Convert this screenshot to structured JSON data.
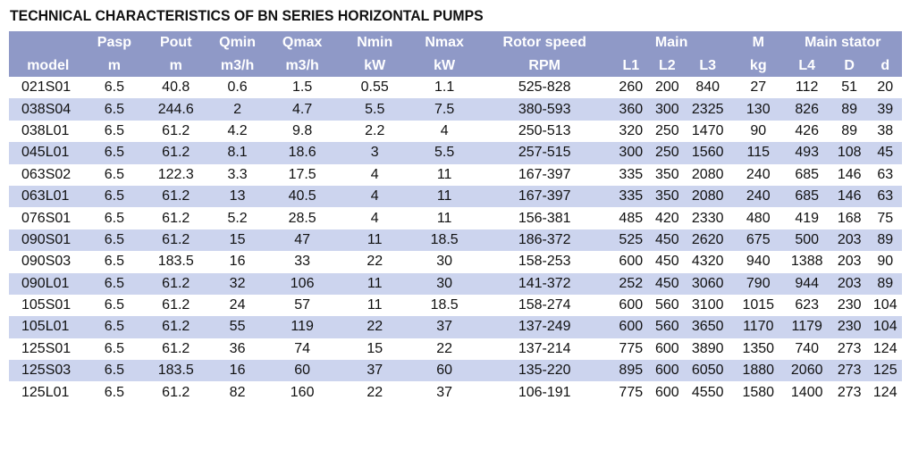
{
  "title": "TECHNICAL CHARACTERISTICS OF BN SERIES HORIZONTAL PUMPS",
  "header_row1": [
    "",
    "Pasp",
    "Pout",
    "Qmin",
    "Qmax",
    "Nmin",
    "Nmax",
    "Rotor speed",
    "Main",
    "M",
    "Main stator"
  ],
  "header_row2": [
    "model",
    "m",
    "m",
    "m3/h",
    "m3/h",
    "kW",
    "kW",
    "RPM",
    "L1",
    "L2",
    "L3",
    "kg",
    "L4",
    "D",
    "d"
  ],
  "rows": [
    [
      "021S01",
      "6.5",
      "40.8",
      "0.6",
      "1.5",
      "0.55",
      "1.1",
      "525-828",
      "260",
      "200",
      "840",
      "27",
      "112",
      "51",
      "20"
    ],
    [
      "038S04",
      "6.5",
      "244.6",
      "2",
      "4.7",
      "5.5",
      "7.5",
      "380-593",
      "360",
      "300",
      "2325",
      "130",
      "826",
      "89",
      "39"
    ],
    [
      "038L01",
      "6.5",
      "61.2",
      "4.2",
      "9.8",
      "2.2",
      "4",
      "250-513",
      "320",
      "250",
      "1470",
      "90",
      "426",
      "89",
      "38"
    ],
    [
      "045L01",
      "6.5",
      "61.2",
      "8.1",
      "18.6",
      "3",
      "5.5",
      "257-515",
      "300",
      "250",
      "1560",
      "115",
      "493",
      "108",
      "45"
    ],
    [
      "063S02",
      "6.5",
      "122.3",
      "3.3",
      "17.5",
      "4",
      "11",
      "167-397",
      "335",
      "350",
      "2080",
      "240",
      "685",
      "146",
      "63"
    ],
    [
      "063L01",
      "6.5",
      "61.2",
      "13",
      "40.5",
      "4",
      "11",
      "167-397",
      "335",
      "350",
      "2080",
      "240",
      "685",
      "146",
      "63"
    ],
    [
      "076S01",
      "6.5",
      "61.2",
      "5.2",
      "28.5",
      "4",
      "11",
      "156-381",
      "485",
      "420",
      "2330",
      "480",
      "419",
      "168",
      "75"
    ],
    [
      "090S01",
      "6.5",
      "61.2",
      "15",
      "47",
      "11",
      "18.5",
      "186-372",
      "525",
      "450",
      "2620",
      "675",
      "500",
      "203",
      "89"
    ],
    [
      "090S03",
      "6.5",
      "183.5",
      "16",
      "33",
      "22",
      "30",
      "158-253",
      "600",
      "450",
      "4320",
      "940",
      "1388",
      "203",
      "90"
    ],
    [
      "090L01",
      "6.5",
      "61.2",
      "32",
      "106",
      "11",
      "30",
      "141-372",
      "252",
      "450",
      "3060",
      "790",
      "944",
      "203",
      "89"
    ],
    [
      "105S01",
      "6.5",
      "61.2",
      "24",
      "57",
      "11",
      "18.5",
      "158-274",
      "600",
      "560",
      "3100",
      "1015",
      "623",
      "230",
      "104"
    ],
    [
      "105L01",
      "6.5",
      "61.2",
      "55",
      "119",
      "22",
      "37",
      "137-249",
      "600",
      "560",
      "3650",
      "1170",
      "1179",
      "230",
      "104"
    ],
    [
      "125S01",
      "6.5",
      "61.2",
      "36",
      "74",
      "15",
      "22",
      "137-214",
      "775",
      "600",
      "3890",
      "1350",
      "740",
      "273",
      "124"
    ],
    [
      "125S03",
      "6.5",
      "183.5",
      "16",
      "60",
      "37",
      "60",
      "135-220",
      "895",
      "600",
      "6050",
      "1880",
      "2060",
      "273",
      "125"
    ],
    [
      "125L01",
      "6.5",
      "61.2",
      "82",
      "160",
      "22",
      "37",
      "106-191",
      "775",
      "600",
      "4550",
      "1580",
      "1400",
      "273",
      "124"
    ]
  ],
  "colors": {
    "header_bg": "#8f99c7",
    "header_text": "#ffffff",
    "stripe": "#ccd4ee"
  }
}
